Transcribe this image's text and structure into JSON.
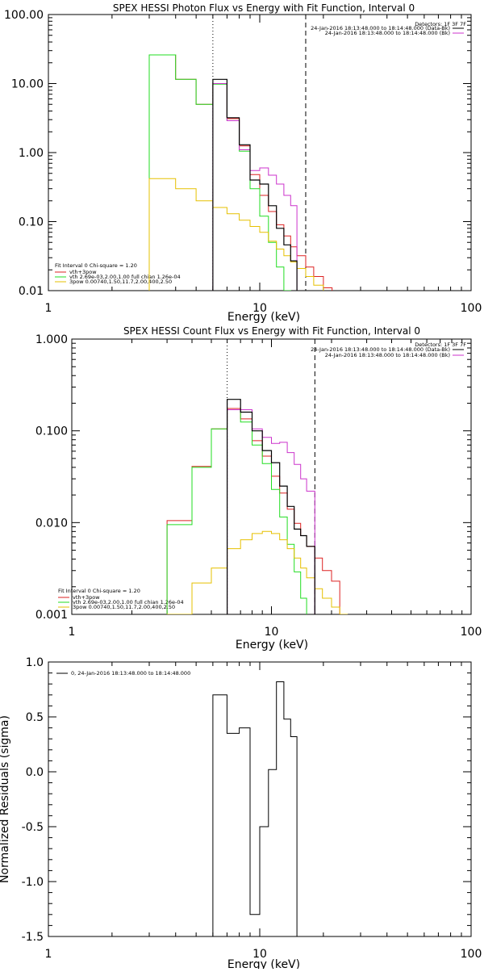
{
  "chart_data": [
    {
      "type": "line",
      "title": "SPEX HESSI Photon Flux vs Energy with Fit Function, Interval 0",
      "xlabel": "Energy (keV)",
      "ylabel": "",
      "xscale": "log",
      "yscale": "log",
      "xlim": [
        1,
        100
      ],
      "ylim": [
        0.01,
        100
      ],
      "xticks": [
        "1",
        "10",
        "100"
      ],
      "yticks": [
        "0.01",
        "0.10",
        "1.00",
        "10.00",
        "100.00"
      ],
      "vlines": [
        {
          "x": 6,
          "style": "dotted"
        },
        {
          "x": 16.5,
          "style": "dashed"
        }
      ],
      "top_annotations": [
        "Detectors: 1F 3F 7F",
        "24-Jan-2016 18:13:48.000 to 18:14:48.000 (Data-Bk)",
        "24-Jan-2016 18:13:48.000 to 18:14:48.000 (Bk)"
      ],
      "legend_lines": [
        "Fit Interval 0   Chi-square = 1.20",
        "vth+3pow",
        "vth 2.69e-03,2.00,1.00  full chian 1.26e-04",
        "3pow 0.00740,1.50,11.7,2.00,400,2.50"
      ],
      "bin_edges": [
        3,
        4,
        5,
        6,
        7,
        8,
        9,
        10,
        11,
        12,
        13,
        14,
        15,
        16.5,
        18,
        20,
        22,
        24,
        26,
        28,
        30
      ],
      "series": [
        {
          "name": "",
          "role": "data",
          "color": "#000000",
          "x_start": 6,
          "values": [
            11.5,
            3.2,
            1.3,
            0.4,
            0.35,
            0.17,
            0.08,
            0.046,
            0.027
          ]
        },
        {
          "name": "",
          "role": "background",
          "color": "#cc33cc",
          "x_start": 6,
          "values": [
            10,
            2.9,
            1.1,
            0.55,
            0.6,
            0.47,
            0.35,
            0.24,
            0.17
          ]
        },
        {
          "name": "vth+3pow",
          "color": "#dd2222",
          "x_start": 3,
          "values": [
            26,
            11.5,
            5,
            10,
            3.1,
            1.25,
            0.48,
            0.24,
            0.14,
            0.09,
            0.062,
            0.043,
            0.032,
            0.022,
            0.016,
            0.011
          ]
        },
        {
          "name": "vth 2.69e-03,2.00,1.00  full chian 1.26e-04",
          "color": "#22dd22",
          "x_start": 3,
          "values": [
            26,
            11.5,
            5,
            9.8,
            2.9,
            1.05,
            0.3,
            0.12,
            0.05,
            0.022,
            0.01
          ]
        },
        {
          "name": "3pow 0.00740,1.50,11.7,2.00,400,2.50",
          "color": "#e6c000",
          "x_start": 3,
          "values": [
            0.42,
            0.3,
            0.2,
            0.16,
            0.13,
            0.105,
            0.085,
            0.07,
            0.052,
            0.04,
            0.032,
            0.026,
            0.021,
            0.016,
            0.012,
            0.009,
            0.007
          ]
        }
      ]
    },
    {
      "type": "line",
      "title": "SPEX HESSI Count Flux vs Energy with Fit Function, Interval 0",
      "xlabel": "Energy (keV)",
      "ylabel": "",
      "xscale": "log",
      "yscale": "log",
      "xlim": [
        1,
        100
      ],
      "ylim": [
        0.001,
        1
      ],
      "xticks": [
        "1",
        "10",
        "100"
      ],
      "yticks": [
        "0.001",
        "0.010",
        "0.100",
        "1.000"
      ],
      "vlines": [
        {
          "x": 6,
          "style": "dotted"
        },
        {
          "x": 16.5,
          "style": "dashed"
        }
      ],
      "top_annotations": [
        "Detectors: 1F 3F 7F",
        "24-Jan-2016 18:13:48.000 to 18:14:48.000 (Data-Bk)",
        "24-Jan-2016 18:13:48.000 to 18:14:48.000 (Bk)"
      ],
      "legend_lines": [
        "Fit Interval 0   Chi-square = 1.20",
        "vth+3pow",
        "vth 2.69e-03,2.00,1.00  full chian 1.26e-04",
        "3pow 0.00740,1.50,11.7,2.00,400,2.50"
      ],
      "bin_edges": [
        3,
        4,
        5,
        6,
        7,
        8,
        9,
        10,
        11,
        12,
        13,
        14,
        15,
        16.5,
        18,
        20,
        22,
        24,
        26,
        28,
        30,
        33,
        36,
        40
      ],
      "series": [
        {
          "name": "",
          "role": "data",
          "color": "#000000",
          "x_start": 6,
          "values": [
            0.22,
            0.16,
            0.1,
            0.061,
            0.045,
            0.025,
            0.015,
            0.0085,
            0.0072,
            0.0055
          ]
        },
        {
          "name": "",
          "role": "background",
          "color": "#cc33cc",
          "x_start": 6,
          "values": [
            0.17,
            0.17,
            0.105,
            0.085,
            0.073,
            0.075,
            0.058,
            0.043,
            0.03,
            0.022
          ]
        },
        {
          "name": "vth+3pow",
          "color": "#dd2222",
          "x_start": 3,
          "values": [
            0.0105,
            0.041,
            0.105,
            0.175,
            0.135,
            0.078,
            0.053,
            0.032,
            0.021,
            0.014,
            0.0098,
            0.0072,
            0.0055,
            0.0041,
            0.003,
            0.0023
          ]
        },
        {
          "name": "vth 2.69e-03,2.00,1.00  full chian 1.26e-04",
          "color": "#22dd22",
          "x_start": 3,
          "values": [
            0.0095,
            0.04,
            0.105,
            0.17,
            0.125,
            0.07,
            0.044,
            0.023,
            0.0115,
            0.0058,
            0.0029,
            0.0015
          ]
        },
        {
          "name": "3pow 0.00740,1.50,11.7,2.00,400,2.50",
          "color": "#e6c000",
          "x_start": 3,
          "values": [
            0.001,
            0.0022,
            0.0032,
            0.0052,
            0.0065,
            0.0076,
            0.008,
            0.0076,
            0.0065,
            0.0052,
            0.0041,
            0.0032,
            0.0025,
            0.0019,
            0.0015,
            0.0012,
            0.001
          ]
        }
      ]
    },
    {
      "type": "line",
      "title": "",
      "xlabel": "Energy (keV)",
      "ylabel": "Normalized Residuals (sigma)",
      "xscale": "log",
      "yscale": "linear",
      "xlim": [
        1,
        100
      ],
      "ylim": [
        -1.5,
        1.0
      ],
      "xticks": [
        "1",
        "10",
        "100"
      ],
      "yticks": [
        "-1.5",
        "-1.0",
        "-0.5",
        "0.0",
        "0.5",
        "1.0"
      ],
      "legend_lines": [
        "0, 24-Jan-2016 18:13:48.000 to 18:14:48.000"
      ],
      "bin_edges": [
        6,
        7,
        8,
        9,
        10,
        11,
        12,
        13,
        14,
        15,
        16.5
      ],
      "series": [
        {
          "name": "0, 24-Jan-2016 18:13:48.000 to 18:14:48.000",
          "color": "#000000",
          "x_start": 6,
          "values": [
            0.7,
            0.35,
            0.4,
            -1.3,
            -0.5,
            0.02,
            0.82,
            0.48,
            0.32,
            -1.5
          ]
        }
      ]
    }
  ]
}
